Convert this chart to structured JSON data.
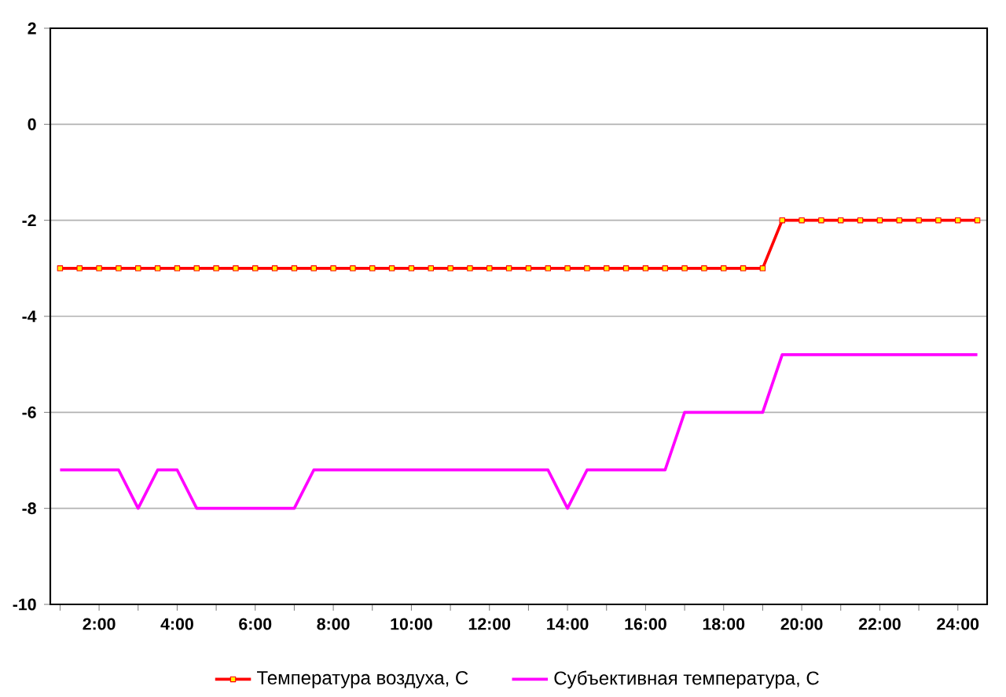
{
  "chart_data": {
    "type": "line",
    "x": [
      1,
      1.5,
      2,
      2.5,
      3,
      3.5,
      4,
      4.5,
      5,
      5.5,
      6,
      6.5,
      7,
      7.5,
      8,
      8.5,
      9,
      9.5,
      10,
      10.5,
      11,
      11.5,
      12,
      12.5,
      13,
      13.5,
      14,
      14.5,
      15,
      15.5,
      16,
      16.5,
      17,
      17.5,
      18,
      18.5,
      19,
      19.5,
      20,
      20.5,
      21,
      21.5,
      22,
      22.5,
      23,
      23.5,
      24,
      24.5
    ],
    "series": [
      {
        "name": "Температура воздуха, С",
        "color": "#ff0000",
        "marker": "square",
        "values": [
          -3,
          -3,
          -3,
          -3,
          -3,
          -3,
          -3,
          -3,
          -3,
          -3,
          -3,
          -3,
          -3,
          -3,
          -3,
          -3,
          -3,
          -3,
          -3,
          -3,
          -3,
          -3,
          -3,
          -3,
          -3,
          -3,
          -3,
          -3,
          -3,
          -3,
          -3,
          -3,
          -3,
          -3,
          -3,
          -3,
          -3,
          -2,
          -2,
          -2,
          -2,
          -2,
          -2,
          -2,
          -2,
          -2,
          -2,
          -2
        ]
      },
      {
        "name": "Субъективная температура, С",
        "color": "#ff00ff",
        "marker": "none",
        "values": [
          -7.2,
          -7.2,
          -7.2,
          -7.2,
          -8,
          -7.2,
          -7.2,
          -8,
          -8,
          -8,
          -8,
          -8,
          -8,
          -7.2,
          -7.2,
          -7.2,
          -7.2,
          -7.2,
          -7.2,
          -7.2,
          -7.2,
          -7.2,
          -7.2,
          -7.2,
          -7.2,
          -7.2,
          -8,
          -7.2,
          -7.2,
          -7.2,
          -7.2,
          -7.2,
          -6,
          -6,
          -6,
          -6,
          -6,
          -4.8,
          -4.8,
          -4.8,
          -4.8,
          -4.8,
          -4.8,
          -4.8,
          -4.8,
          -4.8,
          -4.8,
          -4.8
        ]
      }
    ],
    "xlim": [
      0.75,
      24.75
    ],
    "xticks": [
      {
        "value": 1,
        "label": null
      },
      {
        "value": 2,
        "label": "2:00"
      },
      {
        "value": 3,
        "label": null
      },
      {
        "value": 4,
        "label": "4:00"
      },
      {
        "value": 5,
        "label": null
      },
      {
        "value": 6,
        "label": "6:00"
      },
      {
        "value": 7,
        "label": null
      },
      {
        "value": 8,
        "label": "8:00"
      },
      {
        "value": 9,
        "label": null
      },
      {
        "value": 10,
        "label": "10:00"
      },
      {
        "value": 11,
        "label": null
      },
      {
        "value": 12,
        "label": "12:00"
      },
      {
        "value": 13,
        "label": null
      },
      {
        "value": 14,
        "label": "14:00"
      },
      {
        "value": 15,
        "label": null
      },
      {
        "value": 16,
        "label": "16:00"
      },
      {
        "value": 17,
        "label": null
      },
      {
        "value": 18,
        "label": "18:00"
      },
      {
        "value": 19,
        "label": null
      },
      {
        "value": 20,
        "label": "20:00"
      },
      {
        "value": 21,
        "label": null
      },
      {
        "value": 22,
        "label": "22:00"
      },
      {
        "value": 23,
        "label": null
      },
      {
        "value": 24,
        "label": "24:00"
      }
    ],
    "ylim": [
      -10,
      2
    ],
    "yticks": [
      -10,
      -8,
      -6,
      -4,
      -2,
      0,
      2
    ],
    "grid": "y",
    "legend": "bottom",
    "line_style": "solid"
  }
}
